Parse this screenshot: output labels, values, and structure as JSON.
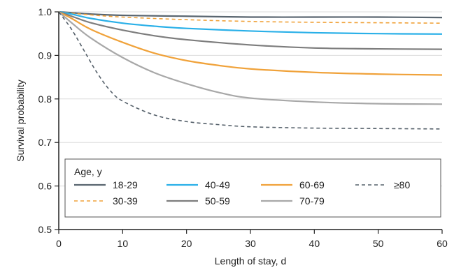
{
  "chart_data": {
    "type": "line",
    "xlabel": "Length of stay, d",
    "ylabel": "Survival probability",
    "xlim": [
      0,
      60
    ],
    "ylim": [
      0.5,
      1.0
    ],
    "x_ticks": [
      "0",
      "10",
      "20",
      "30",
      "40",
      "50",
      "60"
    ],
    "y_ticks": [
      "0.5",
      "0.6",
      "0.7",
      "0.8",
      "0.9",
      "1.0"
    ],
    "grid": "horizontal",
    "legend_title": "Age, y",
    "legend_position": "bottom-left",
    "series": [
      {
        "name": "18-29",
        "color": "#5a6670",
        "dash": "solid",
        "x": [
          0,
          2,
          5,
          10,
          20,
          30,
          40,
          50,
          60
        ],
        "y": [
          1.0,
          0.998,
          0.995,
          0.992,
          0.99,
          0.988,
          0.988,
          0.988,
          0.987
        ]
      },
      {
        "name": "30-39",
        "color": "#f0a23a",
        "dash": "dashed",
        "x": [
          0,
          2,
          5,
          10,
          20,
          30,
          40,
          50,
          60
        ],
        "y": [
          1.0,
          0.997,
          0.993,
          0.988,
          0.982,
          0.978,
          0.976,
          0.975,
          0.974
        ]
      },
      {
        "name": "40-49",
        "color": "#2ab0e8",
        "dash": "solid",
        "x": [
          0,
          2,
          5,
          10,
          15,
          20,
          30,
          40,
          50,
          60
        ],
        "y": [
          1.0,
          0.995,
          0.985,
          0.974,
          0.967,
          0.962,
          0.956,
          0.952,
          0.95,
          0.949
        ]
      },
      {
        "name": "50-59",
        "color": "#7d7d7d",
        "dash": "solid",
        "x": [
          0,
          2,
          5,
          10,
          15,
          20,
          30,
          40,
          50,
          60
        ],
        "y": [
          1.0,
          0.99,
          0.975,
          0.958,
          0.945,
          0.936,
          0.924,
          0.917,
          0.915,
          0.914
        ]
      },
      {
        "name": "60-69",
        "color": "#f0a23a",
        "dash": "solid",
        "x": [
          0,
          2,
          5,
          10,
          15,
          20,
          25,
          30,
          40,
          50,
          60
        ],
        "y": [
          1.0,
          0.985,
          0.96,
          0.93,
          0.905,
          0.888,
          0.877,
          0.869,
          0.861,
          0.857,
          0.855
        ]
      },
      {
        "name": "70-79",
        "color": "#a8a8a8",
        "dash": "solid",
        "x": [
          0,
          2,
          5,
          10,
          15,
          20,
          25,
          30,
          40,
          50,
          60
        ],
        "y": [
          1.0,
          0.975,
          0.94,
          0.895,
          0.86,
          0.835,
          0.815,
          0.802,
          0.793,
          0.789,
          0.788
        ]
      },
      {
        "name": "≥80",
        "color": "#55606a",
        "dash": "dashed",
        "x": [
          0,
          2,
          4,
          6,
          8,
          10,
          15,
          20,
          25,
          30,
          40,
          50,
          60
        ],
        "y": [
          1.0,
          0.96,
          0.91,
          0.86,
          0.82,
          0.795,
          0.763,
          0.748,
          0.741,
          0.736,
          0.733,
          0.732,
          0.731
        ]
      }
    ]
  }
}
